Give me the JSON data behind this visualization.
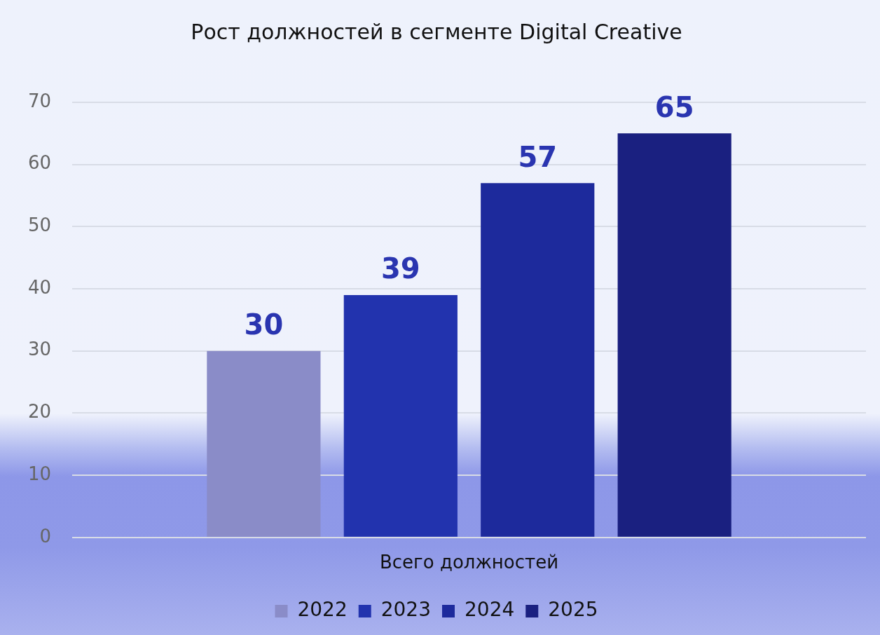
{
  "chart_data": {
    "type": "bar",
    "title": "Рост должностей в сегменте Digital Creative",
    "categories": [
      "Всего должностей"
    ],
    "series": [
      {
        "name": "2022",
        "color": "#8a8cc8",
        "values": [
          30
        ]
      },
      {
        "name": "2023",
        "color": "#2233ae",
        "values": [
          39
        ]
      },
      {
        "name": "2024",
        "color": "#1d2a9c",
        "values": [
          57
        ]
      },
      {
        "name": "2025",
        "color": "#1a2080",
        "values": [
          65
        ]
      }
    ],
    "ylim": [
      0,
      70
    ],
    "yticks": [
      0,
      10,
      20,
      30,
      40,
      50,
      60,
      70
    ],
    "grid": "y",
    "legend": "bottom",
    "data_labels": true
  }
}
